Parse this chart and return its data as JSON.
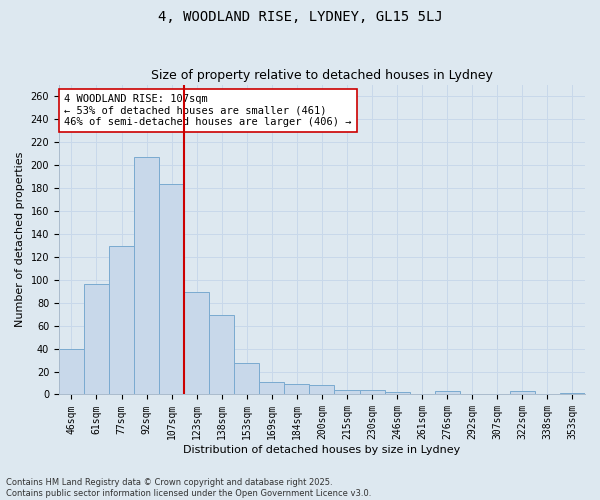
{
  "title_line1": "4, WOODLAND RISE, LYDNEY, GL15 5LJ",
  "title_line2": "Size of property relative to detached houses in Lydney",
  "xlabel": "Distribution of detached houses by size in Lydney",
  "ylabel": "Number of detached properties",
  "categories": [
    "46sqm",
    "61sqm",
    "77sqm",
    "92sqm",
    "107sqm",
    "123sqm",
    "138sqm",
    "153sqm",
    "169sqm",
    "184sqm",
    "200sqm",
    "215sqm",
    "230sqm",
    "246sqm",
    "261sqm",
    "276sqm",
    "292sqm",
    "307sqm",
    "322sqm",
    "338sqm",
    "353sqm"
  ],
  "values": [
    40,
    96,
    129,
    207,
    183,
    89,
    69,
    27,
    11,
    9,
    8,
    4,
    4,
    2,
    0,
    3,
    0,
    0,
    3,
    0,
    1
  ],
  "bar_color": "#c8d8ea",
  "bar_edge_color": "#7aaad0",
  "vline_color": "#cc0000",
  "vline_index": 4,
  "annotation_text": "4 WOODLAND RISE: 107sqm\n← 53% of detached houses are smaller (461)\n46% of semi-detached houses are larger (406) →",
  "annotation_box_color": "#ffffff",
  "annotation_box_edge": "#cc0000",
  "grid_color": "#c8d8ea",
  "background_color": "#dde8f0",
  "ylim": [
    0,
    270
  ],
  "yticks": [
    0,
    20,
    40,
    60,
    80,
    100,
    120,
    140,
    160,
    180,
    200,
    220,
    240,
    260
  ],
  "footnote": "Contains HM Land Registry data © Crown copyright and database right 2025.\nContains public sector information licensed under the Open Government Licence v3.0.",
  "title_fontsize": 10,
  "subtitle_fontsize": 9,
  "axis_label_fontsize": 8,
  "tick_fontsize": 7,
  "annotation_fontsize": 7.5,
  "footnote_fontsize": 6
}
